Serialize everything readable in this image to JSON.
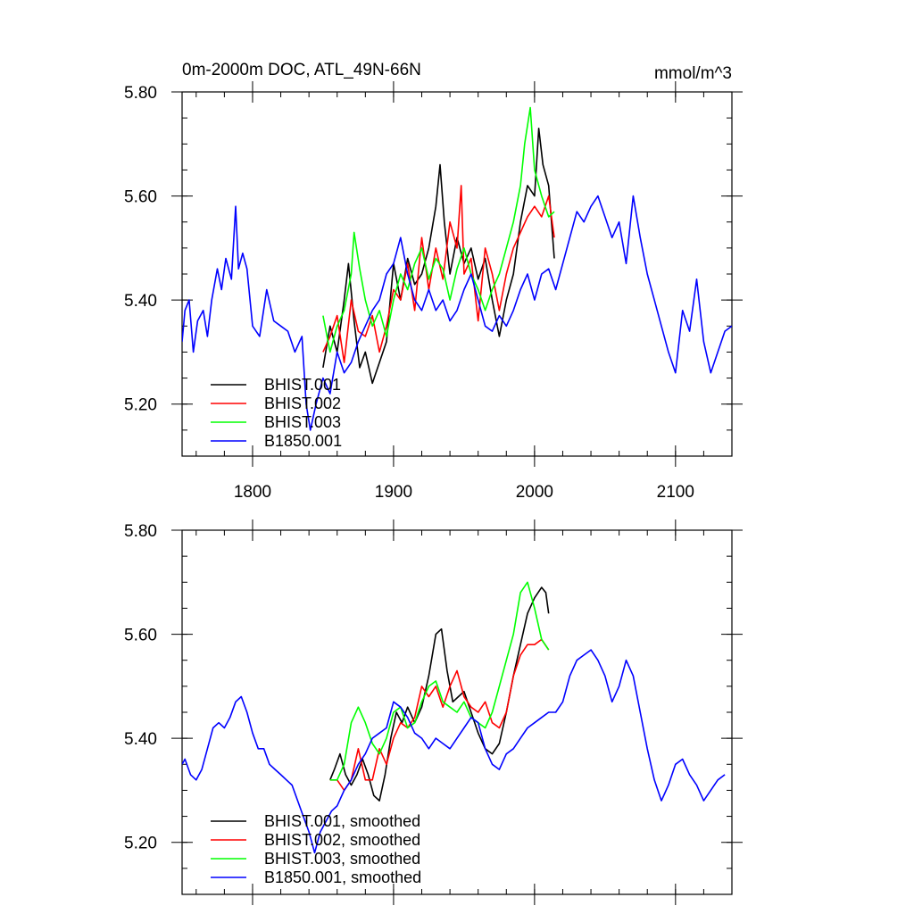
{
  "chart_data": [
    {
      "type": "line",
      "title": "0m-2000m DOC, ATL_49N-66N",
      "units": "mmol/m^3",
      "xlim": [
        1750,
        2140
      ],
      "ylim": [
        5.1,
        5.8
      ],
      "yticks": [
        5.2,
        5.4,
        5.6,
        5.8
      ],
      "ytick_labels": [
        "5.20",
        "5.40",
        "5.60",
        "5.80"
      ],
      "xticks": [
        1800,
        1900,
        2000,
        2100
      ],
      "xtick_labels": [
        "1800",
        "1900",
        "2000",
        "2100"
      ],
      "show_xtick_labels": true,
      "legend_position": "bottom-left",
      "series": [
        {
          "name": "BHIST.001",
          "color": "#000000",
          "x": [
            1850,
            1855,
            1860,
            1865,
            1868,
            1872,
            1876,
            1880,
            1885,
            1890,
            1895,
            1900,
            1905,
            1910,
            1915,
            1920,
            1925,
            1930,
            1933,
            1936,
            1940,
            1945,
            1950,
            1955,
            1960,
            1965,
            1970,
            1975,
            1980,
            1985,
            1990,
            1995,
            2000,
            2003,
            2006,
            2010,
            2014
          ],
          "y": [
            5.27,
            5.35,
            5.3,
            5.4,
            5.47,
            5.36,
            5.27,
            5.3,
            5.24,
            5.28,
            5.32,
            5.47,
            5.4,
            5.48,
            5.43,
            5.45,
            5.5,
            5.58,
            5.66,
            5.55,
            5.45,
            5.52,
            5.47,
            5.5,
            5.44,
            5.48,
            5.4,
            5.33,
            5.4,
            5.45,
            5.55,
            5.62,
            5.6,
            5.73,
            5.66,
            5.62,
            5.48
          ]
        },
        {
          "name": "BHIST.002",
          "color": "#ff0000",
          "x": [
            1850,
            1855,
            1860,
            1865,
            1870,
            1875,
            1880,
            1885,
            1890,
            1895,
            1900,
            1905,
            1910,
            1915,
            1920,
            1925,
            1930,
            1935,
            1940,
            1945,
            1948,
            1950,
            1955,
            1960,
            1965,
            1970,
            1975,
            1980,
            1985,
            1990,
            1995,
            2000,
            2005,
            2010,
            2014
          ],
          "y": [
            5.3,
            5.33,
            5.37,
            5.28,
            5.4,
            5.34,
            5.33,
            5.37,
            5.3,
            5.35,
            5.42,
            5.4,
            5.47,
            5.38,
            5.52,
            5.42,
            5.5,
            5.44,
            5.55,
            5.5,
            5.62,
            5.45,
            5.48,
            5.36,
            5.5,
            5.45,
            5.38,
            5.45,
            5.5,
            5.53,
            5.56,
            5.58,
            5.56,
            5.6,
            5.52
          ]
        },
        {
          "name": "BHIST.003",
          "color": "#00ff00",
          "x": [
            1850,
            1855,
            1860,
            1865,
            1870,
            1872,
            1876,
            1880,
            1885,
            1890,
            1895,
            1900,
            1905,
            1910,
            1915,
            1920,
            1925,
            1930,
            1935,
            1940,
            1945,
            1950,
            1955,
            1960,
            1965,
            1970,
            1975,
            1980,
            1985,
            1990,
            1993,
            1997,
            2000,
            2005,
            2010,
            2014
          ],
          "y": [
            5.37,
            5.3,
            5.35,
            5.38,
            5.45,
            5.53,
            5.46,
            5.4,
            5.35,
            5.38,
            5.33,
            5.4,
            5.45,
            5.42,
            5.47,
            5.5,
            5.44,
            5.48,
            5.46,
            5.4,
            5.46,
            5.5,
            5.45,
            5.42,
            5.38,
            5.42,
            5.45,
            5.5,
            5.55,
            5.62,
            5.7,
            5.77,
            5.65,
            5.6,
            5.56,
            5.57
          ]
        },
        {
          "name": "B1850.001",
          "color": "#0000ff",
          "x": [
            1750,
            1752,
            1755,
            1758,
            1761,
            1765,
            1768,
            1771,
            1775,
            1778,
            1781,
            1785,
            1788,
            1790,
            1793,
            1796,
            1800,
            1805,
            1810,
            1815,
            1820,
            1825,
            1830,
            1835,
            1838,
            1841,
            1845,
            1850,
            1855,
            1860,
            1865,
            1870,
            1875,
            1880,
            1885,
            1890,
            1895,
            1900,
            1905,
            1910,
            1915,
            1920,
            1925,
            1930,
            1935,
            1940,
            1945,
            1950,
            1955,
            1960,
            1965,
            1970,
            1975,
            1980,
            1985,
            1990,
            1995,
            2000,
            2005,
            2010,
            2015,
            2020,
            2025,
            2030,
            2035,
            2040,
            2045,
            2050,
            2055,
            2060,
            2065,
            2070,
            2075,
            2080,
            2085,
            2090,
            2095,
            2100,
            2105,
            2110,
            2115,
            2120,
            2125,
            2130,
            2135,
            2140
          ],
          "y": [
            5.32,
            5.38,
            5.4,
            5.3,
            5.36,
            5.38,
            5.33,
            5.4,
            5.46,
            5.42,
            5.48,
            5.44,
            5.58,
            5.46,
            5.49,
            5.46,
            5.35,
            5.33,
            5.42,
            5.36,
            5.35,
            5.34,
            5.3,
            5.33,
            5.2,
            5.15,
            5.2,
            5.25,
            5.22,
            5.3,
            5.26,
            5.28,
            5.32,
            5.35,
            5.38,
            5.4,
            5.45,
            5.47,
            5.52,
            5.45,
            5.4,
            5.38,
            5.42,
            5.38,
            5.4,
            5.36,
            5.38,
            5.42,
            5.45,
            5.4,
            5.35,
            5.34,
            5.37,
            5.35,
            5.38,
            5.42,
            5.45,
            5.4,
            5.45,
            5.46,
            5.42,
            5.47,
            5.52,
            5.57,
            5.55,
            5.58,
            5.6,
            5.56,
            5.52,
            5.55,
            5.47,
            5.6,
            5.52,
            5.45,
            5.4,
            5.35,
            5.3,
            5.26,
            5.38,
            5.34,
            5.44,
            5.32,
            5.26,
            5.3,
            5.34,
            5.35
          ]
        }
      ]
    },
    {
      "type": "line",
      "title": "",
      "xlim": [
        1750,
        2140
      ],
      "ylim": [
        5.1,
        5.8
      ],
      "yticks": [
        5.2,
        5.4,
        5.6,
        5.8
      ],
      "ytick_labels": [
        "5.20",
        "5.40",
        "5.60",
        "5.80"
      ],
      "xticks": [
        1800,
        1900,
        2000,
        2100
      ],
      "show_xtick_labels": false,
      "legend_position": "bottom-left",
      "series": [
        {
          "name": "BHIST.001, smoothed",
          "color": "#000000",
          "x": [
            1855,
            1858,
            1862,
            1866,
            1870,
            1874,
            1878,
            1882,
            1886,
            1890,
            1894,
            1898,
            1902,
            1906,
            1910,
            1915,
            1920,
            1925,
            1930,
            1934,
            1938,
            1942,
            1946,
            1950,
            1955,
            1960,
            1965,
            1970,
            1975,
            1980,
            1985,
            1990,
            1995,
            2000,
            2005,
            2008,
            2010
          ],
          "y": [
            5.32,
            5.34,
            5.37,
            5.33,
            5.31,
            5.33,
            5.36,
            5.33,
            5.29,
            5.28,
            5.33,
            5.4,
            5.45,
            5.43,
            5.46,
            5.43,
            5.46,
            5.52,
            5.6,
            5.61,
            5.53,
            5.47,
            5.48,
            5.49,
            5.45,
            5.41,
            5.38,
            5.37,
            5.39,
            5.45,
            5.52,
            5.58,
            5.64,
            5.67,
            5.69,
            5.68,
            5.64
          ]
        },
        {
          "name": "BHIST.002, smoothed",
          "color": "#ff0000",
          "x": [
            1855,
            1860,
            1865,
            1870,
            1875,
            1880,
            1885,
            1890,
            1895,
            1900,
            1905,
            1910,
            1915,
            1920,
            1925,
            1930,
            1935,
            1940,
            1945,
            1950,
            1955,
            1960,
            1965,
            1970,
            1975,
            1980,
            1985,
            1990,
            1995,
            2000,
            2005,
            2010
          ],
          "y": [
            5.32,
            5.32,
            5.3,
            5.32,
            5.38,
            5.32,
            5.32,
            5.38,
            5.35,
            5.4,
            5.43,
            5.42,
            5.44,
            5.5,
            5.48,
            5.5,
            5.46,
            5.5,
            5.53,
            5.48,
            5.46,
            5.45,
            5.47,
            5.43,
            5.42,
            5.45,
            5.52,
            5.56,
            5.58,
            5.58,
            5.59,
            5.57
          ]
        },
        {
          "name": "BHIST.003, smoothed",
          "color": "#00ff00",
          "x": [
            1855,
            1860,
            1865,
            1870,
            1875,
            1880,
            1885,
            1890,
            1895,
            1900,
            1905,
            1910,
            1915,
            1920,
            1925,
            1930,
            1935,
            1940,
            1945,
            1950,
            1955,
            1960,
            1965,
            1970,
            1975,
            1980,
            1985,
            1990,
            1995,
            2000,
            2005,
            2010
          ],
          "y": [
            5.32,
            5.32,
            5.35,
            5.43,
            5.46,
            5.43,
            5.39,
            5.37,
            5.4,
            5.45,
            5.46,
            5.42,
            5.43,
            5.47,
            5.5,
            5.51,
            5.47,
            5.46,
            5.45,
            5.47,
            5.44,
            5.43,
            5.42,
            5.45,
            5.5,
            5.55,
            5.6,
            5.68,
            5.7,
            5.65,
            5.59,
            5.57
          ]
        },
        {
          "name": "B1850.001, smoothed",
          "color": "#0000ff",
          "x": [
            1750,
            1752,
            1756,
            1760,
            1764,
            1768,
            1772,
            1776,
            1780,
            1784,
            1788,
            1792,
            1796,
            1800,
            1804,
            1808,
            1812,
            1816,
            1820,
            1824,
            1828,
            1832,
            1836,
            1840,
            1844,
            1848,
            1852,
            1856,
            1860,
            1865,
            1870,
            1875,
            1880,
            1885,
            1890,
            1895,
            1900,
            1905,
            1910,
            1915,
            1920,
            1925,
            1930,
            1935,
            1940,
            1945,
            1950,
            1955,
            1960,
            1965,
            1970,
            1975,
            1980,
            1985,
            1990,
            1995,
            2000,
            2005,
            2010,
            2015,
            2020,
            2025,
            2030,
            2035,
            2040,
            2045,
            2050,
            2055,
            2060,
            2065,
            2070,
            2075,
            2080,
            2085,
            2090,
            2095,
            2100,
            2105,
            2110,
            2115,
            2120,
            2125,
            2130,
            2135
          ],
          "y": [
            5.35,
            5.36,
            5.33,
            5.32,
            5.34,
            5.38,
            5.42,
            5.43,
            5.42,
            5.44,
            5.47,
            5.48,
            5.45,
            5.41,
            5.38,
            5.38,
            5.35,
            5.34,
            5.33,
            5.32,
            5.31,
            5.28,
            5.25,
            5.22,
            5.18,
            5.22,
            5.24,
            5.26,
            5.27,
            5.3,
            5.32,
            5.35,
            5.37,
            5.4,
            5.41,
            5.42,
            5.47,
            5.46,
            5.44,
            5.41,
            5.4,
            5.38,
            5.4,
            5.39,
            5.38,
            5.4,
            5.42,
            5.44,
            5.43,
            5.38,
            5.35,
            5.34,
            5.37,
            5.38,
            5.4,
            5.42,
            5.43,
            5.44,
            5.45,
            5.45,
            5.47,
            5.52,
            5.55,
            5.56,
            5.57,
            5.55,
            5.52,
            5.47,
            5.5,
            5.55,
            5.52,
            5.45,
            5.38,
            5.32,
            5.28,
            5.31,
            5.35,
            5.36,
            5.33,
            5.31,
            5.28,
            5.3,
            5.32,
            5.33
          ]
        }
      ]
    }
  ]
}
